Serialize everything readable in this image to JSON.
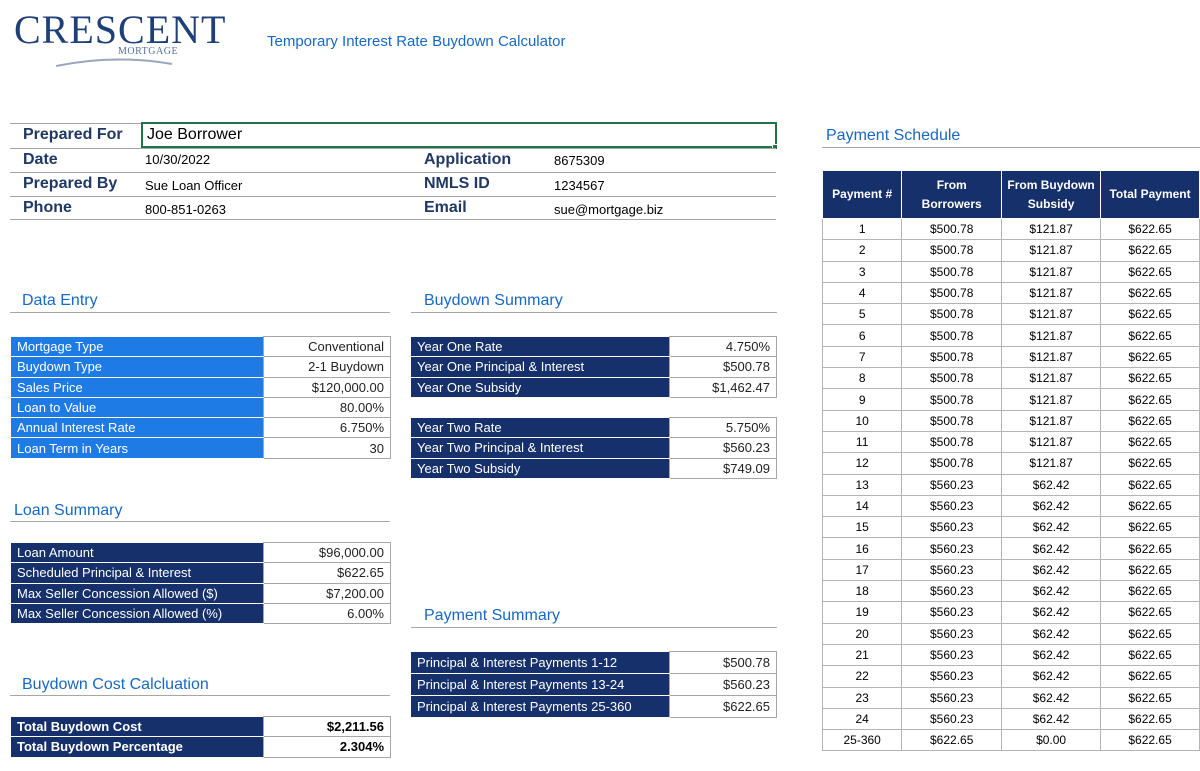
{
  "logo": {
    "main": "CRESCENT",
    "sub": "MORTGAGE"
  },
  "app_title": "Temporary Interest Rate Buydown Calculator",
  "header": {
    "prepared_for_label": "Prepared For",
    "prepared_for_value": "Joe Borrower",
    "date_label": "Date",
    "date_value": "10/30/2022",
    "prepared_by_label": "Prepared By",
    "prepared_by_value": "Sue Loan Officer",
    "phone_label": "Phone",
    "phone_value": "800-851-0263",
    "application_label": "Application",
    "application_value": "8675309",
    "nmls_label": "NMLS ID",
    "nmls_value": "1234567",
    "email_label": "Email",
    "email_value": "sue@mortgage.biz"
  },
  "data_entry": {
    "title": "Data Entry",
    "rows": [
      {
        "label": "Mortgage Type",
        "value": "Conventional"
      },
      {
        "label": "Buydown Type",
        "value": "2-1 Buydown"
      },
      {
        "label": "Sales Price",
        "value": "$120,000.00"
      },
      {
        "label": "Loan to Value",
        "value": "80.00%"
      },
      {
        "label": "Annual Interest Rate",
        "value": "6.750%"
      },
      {
        "label": "Loan Term in Years",
        "value": "30"
      }
    ]
  },
  "buydown_summary": {
    "title": "Buydown Summary",
    "year_one": [
      {
        "label": "Year One Rate",
        "value": "4.750%"
      },
      {
        "label": "Year One Principal & Interest",
        "value": "$500.78"
      },
      {
        "label": "Year One Subsidy",
        "value": "$1,462.47"
      }
    ],
    "year_two": [
      {
        "label": "Year Two Rate",
        "value": "5.750%"
      },
      {
        "label": "Year Two Principal & Interest",
        "value": "$560.23"
      },
      {
        "label": "Year Two Subsidy",
        "value": "$749.09"
      }
    ]
  },
  "loan_summary": {
    "title": "Loan Summary",
    "rows": [
      {
        "label": "Loan Amount",
        "value": "$96,000.00"
      },
      {
        "label": "Scheduled Principal & Interest",
        "value": "$622.65"
      },
      {
        "label": "Max Seller Concession Allowed ($)",
        "value": "$7,200.00"
      },
      {
        "label": "Max Seller Concession Allowed (%)",
        "value": "6.00%"
      }
    ]
  },
  "payment_summary": {
    "title": "Payment Summary",
    "rows": [
      {
        "label": "Principal & Interest Payments 1-12",
        "value": "$500.78"
      },
      {
        "label": "Principal & Interest Payments 13-24",
        "value": "$560.23"
      },
      {
        "label": "Principal & Interest Payments 25-360",
        "value": "$622.65"
      }
    ]
  },
  "buydown_cost": {
    "title": "Buydown Cost Calcluation",
    "rows": [
      {
        "label": "Total Buydown Cost",
        "value": "$2,211.56"
      },
      {
        "label": "Total Buydown Percentage",
        "value": "2.304%"
      }
    ]
  },
  "payment_schedule": {
    "title": "Payment Schedule",
    "headers": [
      "Payment #",
      "From Borrowers",
      "From Buydown Subsidy",
      "Total Payment"
    ],
    "rows": [
      [
        "1",
        "$500.78",
        "$121.87",
        "$622.65"
      ],
      [
        "2",
        "$500.78",
        "$121.87",
        "$622.65"
      ],
      [
        "3",
        "$500.78",
        "$121.87",
        "$622.65"
      ],
      [
        "4",
        "$500.78",
        "$121.87",
        "$622.65"
      ],
      [
        "5",
        "$500.78",
        "$121.87",
        "$622.65"
      ],
      [
        "6",
        "$500.78",
        "$121.87",
        "$622.65"
      ],
      [
        "7",
        "$500.78",
        "$121.87",
        "$622.65"
      ],
      [
        "8",
        "$500.78",
        "$121.87",
        "$622.65"
      ],
      [
        "9",
        "$500.78",
        "$121.87",
        "$622.65"
      ],
      [
        "10",
        "$500.78",
        "$121.87",
        "$622.65"
      ],
      [
        "11",
        "$500.78",
        "$121.87",
        "$622.65"
      ],
      [
        "12",
        "$500.78",
        "$121.87",
        "$622.65"
      ],
      [
        "13",
        "$560.23",
        "$62.42",
        "$622.65"
      ],
      [
        "14",
        "$560.23",
        "$62.42",
        "$622.65"
      ],
      [
        "15",
        "$560.23",
        "$62.42",
        "$622.65"
      ],
      [
        "16",
        "$560.23",
        "$62.42",
        "$622.65"
      ],
      [
        "17",
        "$560.23",
        "$62.42",
        "$622.65"
      ],
      [
        "18",
        "$560.23",
        "$62.42",
        "$622.65"
      ],
      [
        "19",
        "$560.23",
        "$62.42",
        "$622.65"
      ],
      [
        "20",
        "$560.23",
        "$62.42",
        "$622.65"
      ],
      [
        "21",
        "$560.23",
        "$62.42",
        "$622.65"
      ],
      [
        "22",
        "$560.23",
        "$62.42",
        "$622.65"
      ],
      [
        "23",
        "$560.23",
        "$62.42",
        "$622.65"
      ],
      [
        "24",
        "$560.23",
        "$62.42",
        "$622.65"
      ],
      [
        "25-360",
        "$622.65",
        "$0.00",
        "$622.65"
      ]
    ]
  }
}
